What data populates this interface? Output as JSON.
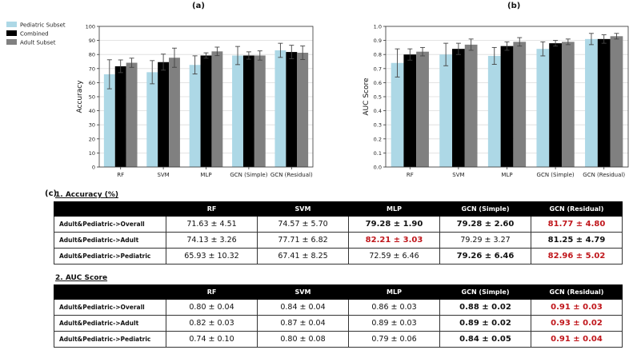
{
  "panel_labels": {
    "a": "(a)",
    "b": "(b)",
    "c": "(c)"
  },
  "colors": {
    "pediatric": "#add8e6",
    "combined": "#000000",
    "adult": "#808080",
    "best": "#c0161b"
  },
  "chart_data": [
    {
      "type": "bar",
      "panel": "a",
      "title": "",
      "xlabel": "",
      "ylabel": "Accuracy",
      "ylim": [
        0,
        100
      ],
      "yticks": [
        "0",
        "10",
        "20",
        "30",
        "40",
        "50",
        "60",
        "70",
        "80",
        "90",
        "100"
      ],
      "grid": true,
      "legend": [
        "Pediatric Subset",
        "Combined",
        "Adult Subset"
      ],
      "legend_position": "outside-top-left",
      "categories": [
        "RF",
        "SVM",
        "MLP",
        "GCN (Simple)",
        "GCN (Residual)"
      ],
      "series": [
        {
          "name": "Pediatric Subset",
          "values": [
            65.93,
            67.41,
            72.59,
            79.26,
            82.96
          ],
          "errors": [
            10.32,
            8.25,
            6.46,
            6.46,
            5.02
          ]
        },
        {
          "name": "Combined",
          "values": [
            71.63,
            74.57,
            79.28,
            79.28,
            81.77
          ],
          "errors": [
            4.51,
            5.7,
            1.9,
            2.6,
            4.8
          ]
        },
        {
          "name": "Adult Subset",
          "values": [
            74.13,
            77.71,
            82.21,
            79.29,
            81.25
          ],
          "errors": [
            3.26,
            6.82,
            3.03,
            3.27,
            4.79
          ]
        }
      ]
    },
    {
      "type": "bar",
      "panel": "b",
      "title": "",
      "xlabel": "",
      "ylabel": "AUC Score",
      "ylim": [
        0,
        1
      ],
      "yticks": [
        "0.0",
        "0.1",
        "0.2",
        "0.3",
        "0.4",
        "0.5",
        "0.6",
        "0.7",
        "0.8",
        "0.9",
        "1.0"
      ],
      "grid": true,
      "categories": [
        "RF",
        "SVM",
        "MLP",
        "GCN (Simple)",
        "GCN (Residual)"
      ],
      "series": [
        {
          "name": "Pediatric Subset",
          "values": [
            0.74,
            0.8,
            0.79,
            0.84,
            0.91
          ],
          "errors": [
            0.1,
            0.08,
            0.06,
            0.05,
            0.04
          ]
        },
        {
          "name": "Combined",
          "values": [
            0.8,
            0.84,
            0.86,
            0.88,
            0.91
          ],
          "errors": [
            0.04,
            0.04,
            0.03,
            0.02,
            0.03
          ]
        },
        {
          "name": "Adult Subset",
          "values": [
            0.82,
            0.87,
            0.89,
            0.89,
            0.93
          ],
          "errors": [
            0.03,
            0.04,
            0.03,
            0.02,
            0.02
          ]
        }
      ]
    }
  ],
  "tables": [
    {
      "title": "1. Accuracy (%)",
      "headers": [
        "",
        "RF",
        "SVM",
        "MLP",
        "GCN (Simple)",
        "GCN (Residual)"
      ],
      "rows": [
        {
          "label": "Adult&Pediatric->Overall",
          "cells": [
            "71.63 ± 4.51",
            "74.57 ± 5.70",
            "79.28 ± 1.90",
            "79.28 ± 2.60",
            "81.77 ± 4.80"
          ],
          "bold": [
            false,
            false,
            true,
            true,
            true
          ],
          "red": [
            false,
            false,
            false,
            false,
            true
          ]
        },
        {
          "label": "Adult&Pediatric->Adult",
          "cells": [
            "74.13 ± 3.26",
            "77.71 ± 6.82",
            "82.21 ± 3.03",
            "79.29 ± 3.27",
            "81.25 ± 4.79"
          ],
          "bold": [
            false,
            false,
            true,
            false,
            true
          ],
          "red": [
            false,
            false,
            true,
            false,
            false
          ]
        },
        {
          "label": "Adult&Pediatric->Pediatric",
          "cells": [
            "65.93 ± 10.32",
            "67.41 ± 8.25",
            "72.59 ± 6.46",
            "79.26 ± 6.46",
            "82.96 ± 5.02"
          ],
          "bold": [
            false,
            false,
            false,
            true,
            true
          ],
          "red": [
            false,
            false,
            false,
            false,
            true
          ]
        }
      ]
    },
    {
      "title": "2. AUC Score",
      "headers": [
        "",
        "RF",
        "SVM",
        "MLP",
        "GCN (Simple)",
        "GCN (Residual)"
      ],
      "rows": [
        {
          "label": "Adult&Pediatric->Overall",
          "cells": [
            "0.80 ± 0.04",
            "0.84 ± 0.04",
            "0.86 ± 0.03",
            "0.88 ± 0.02",
            "0.91 ± 0.03"
          ],
          "bold": [
            false,
            false,
            false,
            true,
            true
          ],
          "red": [
            false,
            false,
            false,
            false,
            true
          ]
        },
        {
          "label": "Adult&Pediatric->Adult",
          "cells": [
            "0.82 ± 0.03",
            "0.87 ± 0.04",
            "0.89 ± 0.03",
            "0.89 ± 0.02",
            "0.93 ± 0.02"
          ],
          "bold": [
            false,
            false,
            false,
            true,
            true
          ],
          "red": [
            false,
            false,
            false,
            false,
            true
          ]
        },
        {
          "label": "Adult&Pediatric->Pediatric",
          "cells": [
            "0.74 ± 0.10",
            "0.80 ± 0.08",
            "0.79 ± 0.06",
            "0.84 ± 0.05",
            "0.91 ± 0.04"
          ],
          "bold": [
            false,
            false,
            false,
            true,
            true
          ],
          "red": [
            false,
            false,
            false,
            false,
            true
          ]
        }
      ]
    }
  ]
}
